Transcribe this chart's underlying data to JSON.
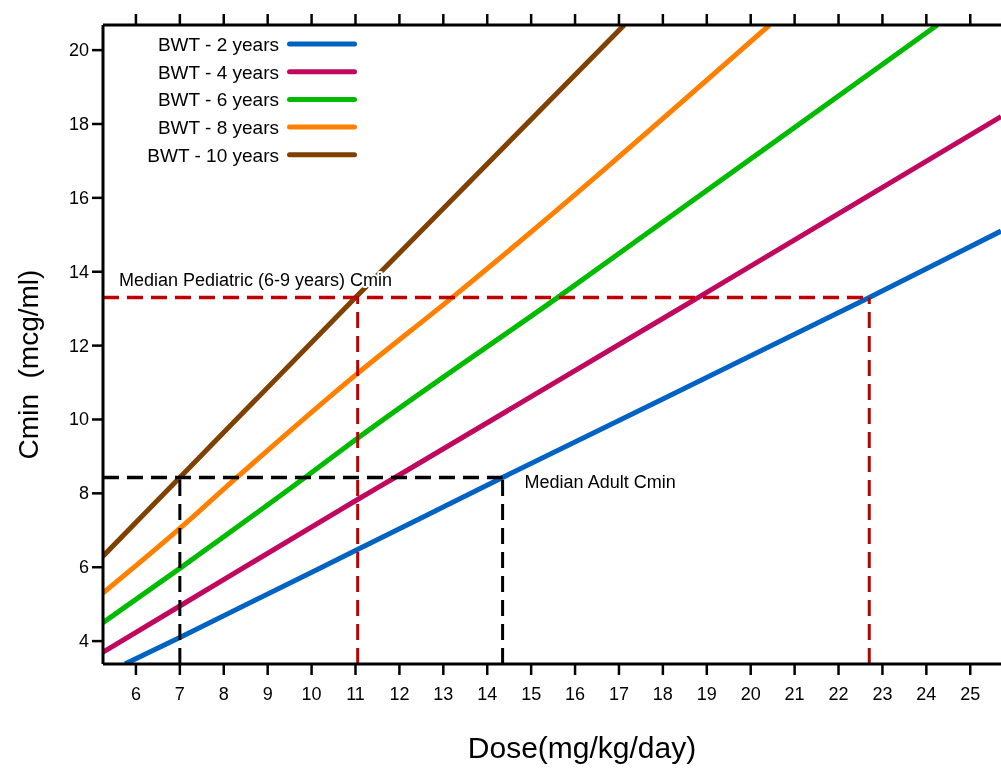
{
  "chart_data": {
    "type": "line",
    "xlabel": "Dose(mg/kg/day)",
    "ylabel": "Cmin  (mcg/ml)",
    "xlim": [
      5.25,
      25.7
    ],
    "ylim": [
      3.38,
      20.68
    ],
    "xticks": [
      6,
      7,
      8,
      9,
      10,
      11,
      12,
      13,
      14,
      15,
      16,
      17,
      18,
      19,
      20,
      21,
      22,
      23,
      24,
      25
    ],
    "yticks": [
      4,
      6,
      8,
      10,
      12,
      14,
      16,
      18,
      20
    ],
    "grid": false,
    "legend": "top left",
    "line_style": "solid",
    "marker": "none",
    "series": [
      {
        "name": "BWT - 2 years",
        "color": "#0063c4",
        "x": [
          5.75,
          7,
          11,
          14.35,
          22.7,
          25.7
        ],
        "values": [
          3.38,
          4.1,
          6.45,
          8.43,
          13.3,
          15.1
        ]
      },
      {
        "name": "BWT - 4 years",
        "color": "#c0085e",
        "x": [
          5.25,
          7,
          11,
          11.9,
          18.8,
          25.7
        ],
        "values": [
          3.7,
          4.95,
          7.8,
          8.43,
          13.3,
          18.2
        ]
      },
      {
        "name": "BWT - 6 years",
        "color": "#00bb00",
        "x": [
          5.25,
          7,
          9.85,
          11,
          15.6,
          24.25
        ],
        "values": [
          4.5,
          5.97,
          8.43,
          9.45,
          13.3,
          20.68
        ]
      },
      {
        "name": "BWT - 8 years",
        "color": "#ff8000",
        "x": [
          5.25,
          7,
          8.3,
          11,
          13.2,
          20.43
        ],
        "values": [
          5.3,
          7.05,
          8.43,
          11.2,
          13.3,
          20.68
        ]
      },
      {
        "name": "BWT - 10 years",
        "color": "#7f4000",
        "x": [
          5.25,
          7,
          11,
          17.12
        ],
        "values": [
          6.3,
          8.43,
          13.3,
          20.68
        ]
      }
    ],
    "ref_lines": [
      {
        "axis": "y",
        "value": 13.3,
        "label": "Median Pediatric (6-9 years) Cmin",
        "color": "#c00000",
        "line_style": "dashed"
      },
      {
        "axis": "x",
        "value": 11.05,
        "color": "#c00000",
        "line_style": "dashed"
      },
      {
        "axis": "x",
        "value": 22.7,
        "color": "#c00000",
        "line_style": "dashed"
      },
      {
        "axis": "y",
        "value": 8.43,
        "label": "Median Adult Cmin",
        "color": "#000000",
        "line_style": "dashed"
      },
      {
        "axis": "x",
        "value": 7,
        "color": "#000000",
        "line_style": "dashed"
      },
      {
        "axis": "x",
        "value": 14.35,
        "color": "#000000",
        "line_style": "dashed"
      }
    ]
  }
}
